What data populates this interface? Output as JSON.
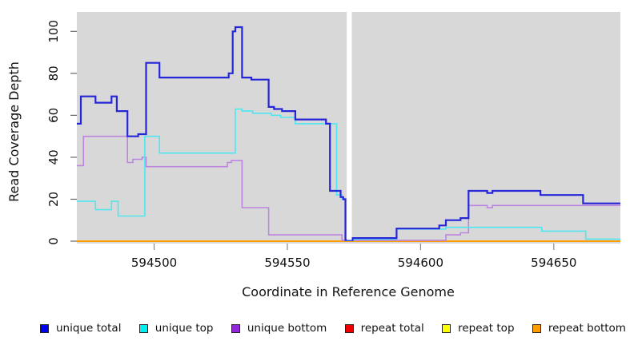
{
  "figure": {
    "background": "#ffffff",
    "plot_background": "#d8d8d8",
    "gap_band_color": "#ffffff"
  },
  "y_axis": {
    "title": "Read Coverage Depth",
    "tick_values": [
      0,
      20,
      40,
      60,
      80,
      100
    ],
    "tick_labels": [
      "0",
      "20",
      "40",
      "60",
      "80",
      "100"
    ],
    "range": [
      0,
      109
    ]
  },
  "x_axis": {
    "title": "Coordinate in Reference Genome",
    "tick_values": [
      594500,
      594550,
      594600,
      594650
    ],
    "tick_labels": [
      "594500",
      "594550",
      "594600",
      "594650"
    ],
    "range": [
      594471,
      594675
    ]
  },
  "gap": {
    "from": 594572.3,
    "to": 594574.2
  },
  "chart_data": {
    "type": "line",
    "style": "step-after",
    "title": "",
    "xlabel": "Coordinate in Reference Genome",
    "ylabel": "Read Coverage Depth",
    "xlim": [
      594471,
      594675
    ],
    "ylim": [
      0,
      109
    ],
    "grid": false,
    "legend_position": "bottom",
    "gap_interval": [
      594572.3,
      594574.2
    ],
    "series": [
      {
        "name": "repeat total",
        "color": "#ee0000",
        "width": 1.4,
        "points": [
          [
            594471,
            0
          ]
        ]
      },
      {
        "name": "repeat top",
        "color": "#ffff00",
        "width": 1.4,
        "points": [
          [
            594471,
            0
          ]
        ]
      },
      {
        "name": "repeat bottom",
        "color": "#ff9d00",
        "width": 2.0,
        "points": [
          [
            594471,
            0
          ]
        ]
      },
      {
        "name": "unique bottom",
        "color": "#bd85e0",
        "width": 1.6,
        "points": [
          [
            594471,
            36
          ],
          [
            594473.5,
            50
          ],
          [
            594490,
            37.5
          ],
          [
            594492,
            39
          ],
          [
            594495.5,
            40
          ],
          [
            594497,
            35.5
          ],
          [
            594527.5,
            37.5
          ],
          [
            594529,
            38.5
          ],
          [
            594533,
            16
          ],
          [
            594543,
            3
          ],
          [
            594570.5,
            0.4
          ],
          [
            594609.5,
            3
          ],
          [
            594615,
            4
          ],
          [
            594618,
            17
          ],
          [
            594625,
            16
          ],
          [
            594627,
            17
          ],
          [
            594675,
            17
          ]
        ]
      },
      {
        "name": "unique top",
        "color": "#4fe6f0",
        "width": 1.6,
        "points": [
          [
            594471,
            19
          ],
          [
            594478,
            15
          ],
          [
            594484,
            19
          ],
          [
            594486.5,
            12
          ],
          [
            594496.5,
            50
          ],
          [
            594502,
            42
          ],
          [
            594530.5,
            63
          ],
          [
            594533,
            62
          ],
          [
            594537,
            61
          ],
          [
            594544,
            60
          ],
          [
            594547.5,
            59
          ],
          [
            594553,
            56
          ],
          [
            594568.5,
            22
          ],
          [
            594570.5,
            20
          ],
          [
            594571.8,
            0.3
          ],
          [
            594574.5,
            1
          ],
          [
            594591,
            5.8
          ],
          [
            594609.5,
            6.6
          ],
          [
            594645.5,
            4.8
          ],
          [
            594662,
            1
          ],
          [
            594675,
            1
          ]
        ]
      },
      {
        "name": "unique total",
        "color": "#2626d9",
        "width": 2.2,
        "points": [
          [
            594471,
            56
          ],
          [
            594472.5,
            69
          ],
          [
            594478,
            66
          ],
          [
            594484,
            69
          ],
          [
            594486,
            62
          ],
          [
            594490,
            50
          ],
          [
            594494,
            51
          ],
          [
            594497,
            85
          ],
          [
            594502,
            78
          ],
          [
            594528,
            80
          ],
          [
            594529.5,
            100
          ],
          [
            594530.5,
            102
          ],
          [
            594533,
            78
          ],
          [
            594536.5,
            77
          ],
          [
            594543,
            64
          ],
          [
            594545,
            63
          ],
          [
            594548,
            62
          ],
          [
            594553,
            58
          ],
          [
            594564.5,
            56
          ],
          [
            594566,
            24
          ],
          [
            594570,
            21
          ],
          [
            594571,
            20
          ],
          [
            594571.8,
            0.5
          ],
          [
            594574.5,
            1.5
          ],
          [
            594591,
            6
          ],
          [
            594607,
            7.5
          ],
          [
            594609.5,
            10
          ],
          [
            594615,
            11
          ],
          [
            594618,
            24
          ],
          [
            594625,
            23
          ],
          [
            594627,
            24
          ],
          [
            594645,
            22
          ],
          [
            594661,
            18
          ],
          [
            594675,
            18
          ]
        ]
      }
    ]
  },
  "legend": {
    "items": [
      {
        "label": "unique total",
        "color": "#0000ee"
      },
      {
        "label": "unique top",
        "color": "#00eeee"
      },
      {
        "label": "unique bottom",
        "color": "#9326db"
      },
      {
        "label": "repeat total",
        "color": "#ee0000"
      },
      {
        "label": "repeat top",
        "color": "#ffff00"
      },
      {
        "label": "repeat bottom",
        "color": "#ff9d00"
      }
    ]
  }
}
